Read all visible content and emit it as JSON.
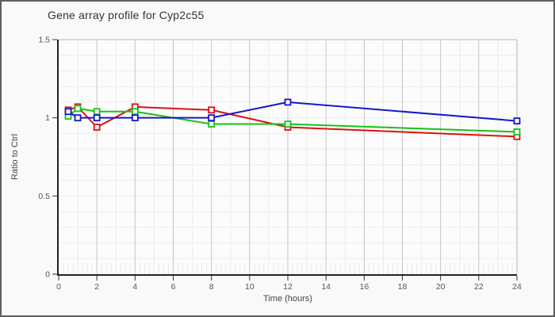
{
  "window": {
    "bg_color": "#f9f9f9",
    "border_color": "#5e5e5e"
  },
  "chart_data": {
    "type": "line",
    "title": "Gene array profile for Cyp2c55",
    "xlabel": "Time (hours)",
    "ylabel": "Ratio to Ctrl",
    "xlim": [
      0,
      24
    ],
    "ylim": [
      0,
      1.5
    ],
    "x_major_ticks": [
      0,
      2,
      4,
      6,
      8,
      10,
      12,
      14,
      16,
      18,
      20,
      22,
      24
    ],
    "x_minor_step": 1,
    "x_subminor_step": 0.25,
    "y_major_ticks": [
      0,
      0.5,
      1,
      1.5
    ],
    "y_minor_step": 0.1,
    "grid": true,
    "legend": "none",
    "marker": "open-square",
    "x": [
      0.5,
      1,
      2,
      4,
      8,
      12,
      24
    ],
    "series": [
      {
        "name": "red",
        "color": "#dd1111",
        "values": [
          1.05,
          1.07,
          0.94,
          1.07,
          1.05,
          0.94,
          0.88
        ]
      },
      {
        "name": "green",
        "color": "#15c415",
        "values": [
          1.01,
          1.06,
          1.04,
          1.04,
          0.96,
          0.96,
          0.91
        ]
      },
      {
        "name": "blue",
        "color": "#1717cc",
        "values": [
          1.04,
          1.0,
          1.0,
          1.0,
          1.0,
          1.1,
          0.98
        ]
      }
    ],
    "plot_bg": "#fcfcfc",
    "grid_minor_color": "#ececec",
    "grid_subminor_color": "#e9e9e9",
    "grid_major_color": "#c5c5c5",
    "plot_border_color": "#b8b8b8",
    "axis_color": "#222222",
    "tick_color": "#333333",
    "tick_label_color": "#555555",
    "axis_label_color": "#444444",
    "title_color": "#333333"
  }
}
